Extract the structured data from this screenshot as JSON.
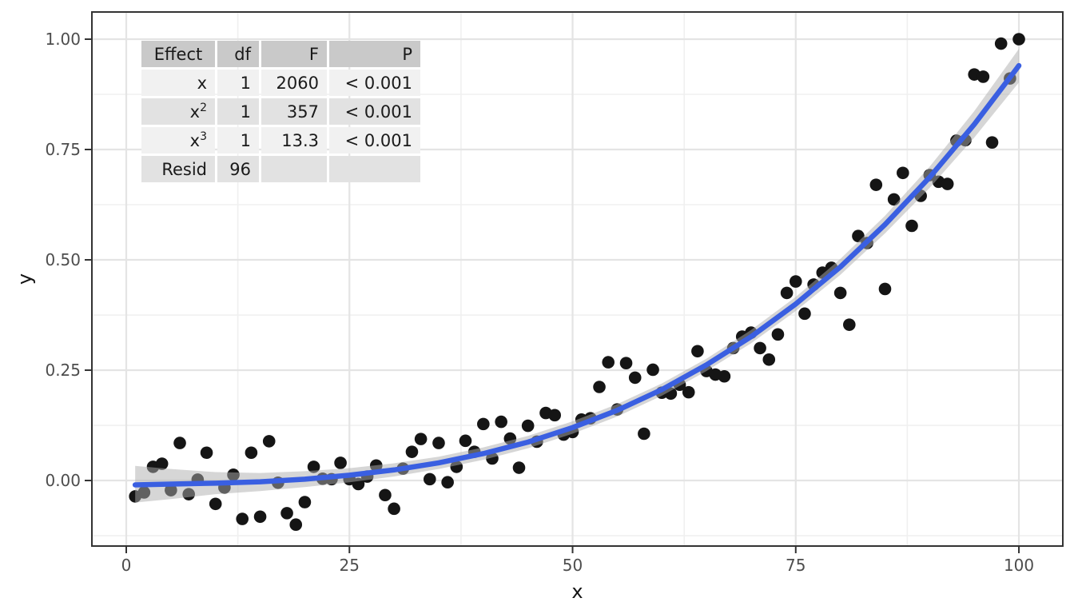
{
  "anova_table": {
    "headers": [
      "Effect",
      "df",
      "F",
      "P"
    ],
    "rows": [
      {
        "effect": "x",
        "effect_sup": "",
        "df": "1",
        "F": "2060",
        "P": "< 0.001"
      },
      {
        "effect": "x",
        "effect_sup": "2",
        "df": "1",
        "F": "357",
        "P": "< 0.001"
      },
      {
        "effect": "x",
        "effect_sup": "3",
        "df": "1",
        "F": "13.3",
        "P": "< 0.001"
      },
      {
        "effect": "Resid",
        "effect_sup": "",
        "df": "96",
        "F": "",
        "P": ""
      }
    ]
  },
  "chart_data": {
    "type": "scatter",
    "title": "",
    "xlabel": "x",
    "ylabel": "y",
    "xlim": [
      -3.85,
      104.92
    ],
    "ylim": [
      -0.1485,
      1.0616
    ],
    "x_ticks": [
      0,
      25,
      50,
      75,
      100
    ],
    "x_tick_labels": [
      "0",
      "25",
      "50",
      "75",
      "100"
    ],
    "x_minor_ticks": [
      12.5,
      37.5,
      62.5,
      87.5
    ],
    "y_ticks": [
      0,
      0.25,
      0.5,
      0.75,
      1
    ],
    "y_tick_labels": [
      "0.00",
      "0.25",
      "0.50",
      "0.75",
      "1.00"
    ],
    "y_minor_ticks": [
      -0.125,
      0.125,
      0.375,
      0.625,
      0.875
    ],
    "grid": true,
    "legend": "none",
    "colors": {
      "point": "#151515",
      "line": "#3A5FE1",
      "band": "#ADADAD",
      "band_opacity": 0.5,
      "grid_major": "#E4E4E4",
      "grid_minor": "#F0F0F0",
      "border": "#333333",
      "tick_text": "#4D4D4D"
    },
    "series": [
      {
        "name": "observations",
        "type": "points",
        "points": [
          [
            1,
            -0.036
          ],
          [
            2,
            -0.027
          ],
          [
            3,
            0.031
          ],
          [
            4,
            0.038
          ],
          [
            5,
            -0.022
          ],
          [
            6,
            0.085
          ],
          [
            7,
            -0.031
          ],
          [
            8,
            0.002
          ],
          [
            9,
            0.063
          ],
          [
            10,
            -0.053
          ],
          [
            11,
            -0.016
          ],
          [
            12,
            0.013
          ],
          [
            13,
            -0.087
          ],
          [
            14,
            0.063
          ],
          [
            15,
            -0.082
          ],
          [
            16,
            0.089
          ],
          [
            17,
            -0.005
          ],
          [
            18,
            -0.074
          ],
          [
            19,
            -0.1
          ],
          [
            20,
            -0.049
          ],
          [
            21,
            0.031
          ],
          [
            22,
            0.004
          ],
          [
            23,
            0.003
          ],
          [
            24,
            0.04
          ],
          [
            25,
            0.003
          ],
          [
            26,
            -0.008
          ],
          [
            27,
            0.009
          ],
          [
            28,
            0.034
          ],
          [
            29,
            -0.033
          ],
          [
            30,
            -0.064
          ],
          [
            31,
            0.027
          ],
          [
            32,
            0.065
          ],
          [
            33,
            0.094
          ],
          [
            34,
            0.003
          ],
          [
            35,
            0.085
          ],
          [
            36,
            -0.004
          ],
          [
            37,
            0.031
          ],
          [
            38,
            0.09
          ],
          [
            39,
            0.065
          ],
          [
            40,
            0.128
          ],
          [
            41,
            0.05
          ],
          [
            42,
            0.133
          ],
          [
            43,
            0.095
          ],
          [
            44,
            0.029
          ],
          [
            45,
            0.124
          ],
          [
            46,
            0.088
          ],
          [
            47,
            0.153
          ],
          [
            48,
            0.148
          ],
          [
            49,
            0.104
          ],
          [
            50,
            0.11
          ],
          [
            51,
            0.138
          ],
          [
            52,
            0.141
          ],
          [
            53,
            0.212
          ],
          [
            54,
            0.268
          ],
          [
            55,
            0.161
          ],
          [
            56,
            0.266
          ],
          [
            57,
            0.233
          ],
          [
            58,
            0.106
          ],
          [
            59,
            0.251
          ],
          [
            60,
            0.199
          ],
          [
            61,
            0.197
          ],
          [
            62,
            0.217
          ],
          [
            63,
            0.2
          ],
          [
            64,
            0.293
          ],
          [
            65,
            0.248
          ],
          [
            66,
            0.24
          ],
          [
            67,
            0.236
          ],
          [
            68,
            0.3
          ],
          [
            69,
            0.326
          ],
          [
            70,
            0.335
          ],
          [
            71,
            0.3
          ],
          [
            72,
            0.274
          ],
          [
            73,
            0.331
          ],
          [
            74,
            0.425
          ],
          [
            75,
            0.451
          ],
          [
            76,
            0.378
          ],
          [
            77,
            0.444
          ],
          [
            78,
            0.471
          ],
          [
            79,
            0.482
          ],
          [
            80,
            0.425
          ],
          [
            81,
            0.353
          ],
          [
            82,
            0.554
          ],
          [
            83,
            0.538
          ],
          [
            84,
            0.67
          ],
          [
            85,
            0.434
          ],
          [
            86,
            0.637
          ],
          [
            87,
            0.697
          ],
          [
            88,
            0.577
          ],
          [
            89,
            0.645
          ],
          [
            90,
            0.692
          ],
          [
            91,
            0.677
          ],
          [
            92,
            0.672
          ],
          [
            93,
            0.77
          ],
          [
            94,
            0.771
          ],
          [
            95,
            0.92
          ],
          [
            96,
            0.915
          ],
          [
            97,
            0.766
          ],
          [
            98,
            0.99
          ],
          [
            99,
            0.911
          ],
          [
            100,
            1.0
          ]
        ]
      },
      {
        "name": "cubic-fit",
        "type": "line-with-ci",
        "trend": [
          {
            "x": 1,
            "y": -0.01,
            "lo": -0.05,
            "hi": 0.033
          },
          {
            "x": 5,
            "y": -0.008,
            "lo": -0.042,
            "hi": 0.026
          },
          {
            "x": 10,
            "y": -0.006,
            "lo": -0.031,
            "hi": 0.019
          },
          {
            "x": 15,
            "y": -0.003,
            "lo": -0.024,
            "hi": 0.017
          },
          {
            "x": 20,
            "y": 0.003,
            "lo": -0.015,
            "hi": 0.021
          },
          {
            "x": 25,
            "y": 0.012,
            "lo": -0.004,
            "hi": 0.028
          },
          {
            "x": 30,
            "y": 0.024,
            "lo": 0.009,
            "hi": 0.039
          },
          {
            "x": 35,
            "y": 0.04,
            "lo": 0.026,
            "hi": 0.054
          },
          {
            "x": 40,
            "y": 0.061,
            "lo": 0.047,
            "hi": 0.075
          },
          {
            "x": 45,
            "y": 0.087,
            "lo": 0.073,
            "hi": 0.101
          },
          {
            "x": 50,
            "y": 0.12,
            "lo": 0.106,
            "hi": 0.134
          },
          {
            "x": 55,
            "y": 0.159,
            "lo": 0.145,
            "hi": 0.173
          },
          {
            "x": 60,
            "y": 0.206,
            "lo": 0.192,
            "hi": 0.22
          },
          {
            "x": 65,
            "y": 0.262,
            "lo": 0.248,
            "hi": 0.276
          },
          {
            "x": 70,
            "y": 0.326,
            "lo": 0.311,
            "hi": 0.341
          },
          {
            "x": 75,
            "y": 0.4,
            "lo": 0.384,
            "hi": 0.416
          },
          {
            "x": 80,
            "y": 0.484,
            "lo": 0.466,
            "hi": 0.502
          },
          {
            "x": 85,
            "y": 0.58,
            "lo": 0.56,
            "hi": 0.6
          },
          {
            "x": 90,
            "y": 0.687,
            "lo": 0.663,
            "hi": 0.711
          },
          {
            "x": 95,
            "y": 0.807,
            "lo": 0.777,
            "hi": 0.837
          },
          {
            "x": 100,
            "y": 0.94,
            "lo": 0.902,
            "hi": 0.978
          }
        ]
      }
    ]
  }
}
